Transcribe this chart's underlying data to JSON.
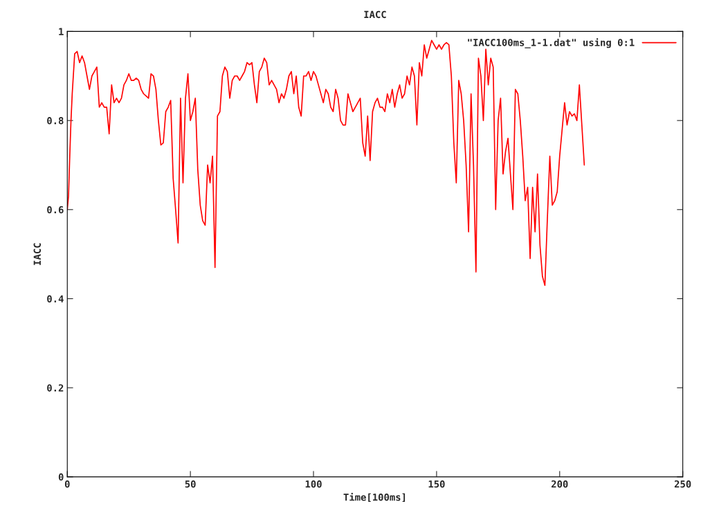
{
  "chart_data": {
    "type": "line",
    "title": "IACC",
    "xlabel": "Time[100ms]",
    "ylabel": "IACC",
    "xlim": [
      0,
      250
    ],
    "xticks": [
      0,
      50,
      100,
      150,
      200,
      250
    ],
    "ylim": [
      0,
      1
    ],
    "yticks": [
      {
        "value": 0,
        "label": "0"
      },
      {
        "value": 0.2,
        "label": "0.2"
      },
      {
        "value": 0.4,
        "label": "0.4"
      },
      {
        "value": 0.6,
        "label": "0.6"
      },
      {
        "value": 0.8,
        "label": "0.8"
      },
      {
        "value": 1,
        "label": "1"
      }
    ],
    "grid": false,
    "legend": "top right",
    "series": [
      {
        "name": "\"IACC100ms_1-1.dat\" using 0:1",
        "color": "#ff0000",
        "x": [
          0,
          0.5,
          1,
          1.5,
          2,
          3,
          4,
          5,
          6,
          7,
          8,
          9,
          10,
          11,
          12,
          13,
          14,
          15,
          16,
          17,
          18,
          19,
          20,
          21,
          22,
          23,
          24,
          25,
          26,
          27,
          28,
          29,
          30,
          31,
          32,
          33,
          34,
          35,
          36,
          37,
          38,
          39,
          40,
          41,
          42,
          43,
          44,
          45,
          46,
          47,
          48,
          49,
          50,
          51,
          52,
          53,
          54,
          55,
          56,
          57,
          58,
          59,
          60,
          61,
          62,
          63,
          64,
          65,
          66,
          67,
          68,
          69,
          70,
          71,
          72,
          73,
          74,
          75,
          76,
          77,
          78,
          79,
          80,
          81,
          82,
          83,
          84,
          85,
          86,
          87,
          88,
          89,
          90,
          91,
          92,
          93,
          94,
          95,
          96,
          97,
          98,
          99,
          100,
          101,
          102,
          103,
          104,
          105,
          106,
          107,
          108,
          109,
          110,
          111,
          112,
          113,
          114,
          115,
          116,
          117,
          118,
          119,
          120,
          121,
          122,
          123,
          124,
          125,
          126,
          127,
          128,
          129,
          130,
          131,
          132,
          133,
          134,
          135,
          136,
          137,
          138,
          139,
          140,
          141,
          142,
          143,
          144,
          145,
          146,
          147,
          148,
          149,
          150,
          151,
          152,
          153,
          154,
          155,
          156,
          157,
          158,
          159,
          160,
          161,
          162,
          163,
          164,
          165,
          166,
          167,
          168,
          169,
          170,
          171,
          172,
          173,
          174,
          175,
          176,
          177,
          178,
          179,
          180,
          181,
          182,
          183,
          184,
          185,
          186,
          187,
          188,
          189,
          190,
          191,
          192,
          193,
          194,
          195,
          196,
          197,
          198,
          199,
          200,
          201,
          202,
          203,
          204,
          205,
          206,
          207,
          208,
          209,
          210
        ],
        "values": [
          0.6,
          0.63,
          0.72,
          0.8,
          0.86,
          0.95,
          0.955,
          0.93,
          0.945,
          0.93,
          0.9,
          0.87,
          0.9,
          0.91,
          0.92,
          0.83,
          0.84,
          0.83,
          0.83,
          0.77,
          0.88,
          0.84,
          0.85,
          0.84,
          0.85,
          0.88,
          0.89,
          0.905,
          0.89,
          0.89,
          0.895,
          0.89,
          0.87,
          0.86,
          0.855,
          0.85,
          0.905,
          0.9,
          0.87,
          0.8,
          0.745,
          0.75,
          0.82,
          0.83,
          0.845,
          0.67,
          0.6,
          0.525,
          0.85,
          0.66,
          0.85,
          0.905,
          0.8,
          0.82,
          0.85,
          0.69,
          0.61,
          0.575,
          0.565,
          0.7,
          0.66,
          0.72,
          0.47,
          0.81,
          0.82,
          0.9,
          0.92,
          0.91,
          0.85,
          0.89,
          0.9,
          0.9,
          0.89,
          0.9,
          0.91,
          0.93,
          0.925,
          0.93,
          0.88,
          0.84,
          0.91,
          0.92,
          0.94,
          0.93,
          0.88,
          0.89,
          0.88,
          0.87,
          0.84,
          0.86,
          0.85,
          0.87,
          0.9,
          0.91,
          0.86,
          0.9,
          0.83,
          0.81,
          0.9,
          0.9,
          0.91,
          0.89,
          0.91,
          0.9,
          0.88,
          0.86,
          0.84,
          0.87,
          0.86,
          0.83,
          0.82,
          0.87,
          0.85,
          0.8,
          0.79,
          0.79,
          0.86,
          0.84,
          0.82,
          0.83,
          0.84,
          0.85,
          0.75,
          0.72,
          0.81,
          0.71,
          0.82,
          0.84,
          0.85,
          0.83,
          0.83,
          0.82,
          0.86,
          0.84,
          0.87,
          0.83,
          0.86,
          0.88,
          0.85,
          0.86,
          0.9,
          0.88,
          0.92,
          0.9,
          0.79,
          0.93,
          0.9,
          0.97,
          0.94,
          0.96,
          0.98,
          0.97,
          0.96,
          0.97,
          0.96,
          0.97,
          0.975,
          0.97,
          0.9,
          0.75,
          0.66,
          0.89,
          0.86,
          0.8,
          0.7,
          0.55,
          0.86,
          0.7,
          0.46,
          0.94,
          0.9,
          0.8,
          0.96,
          0.88,
          0.94,
          0.92,
          0.6,
          0.8,
          0.85,
          0.68,
          0.73,
          0.76,
          0.68,
          0.6,
          0.87,
          0.86,
          0.8,
          0.72,
          0.62,
          0.65,
          0.49,
          0.65,
          0.55,
          0.68,
          0.52,
          0.45,
          0.43,
          0.58,
          0.72,
          0.61,
          0.62,
          0.64,
          0.72,
          0.78,
          0.84,
          0.79,
          0.82,
          0.81,
          0.815,
          0.8,
          0.88,
          0.79,
          0.7
        ]
      }
    ]
  }
}
